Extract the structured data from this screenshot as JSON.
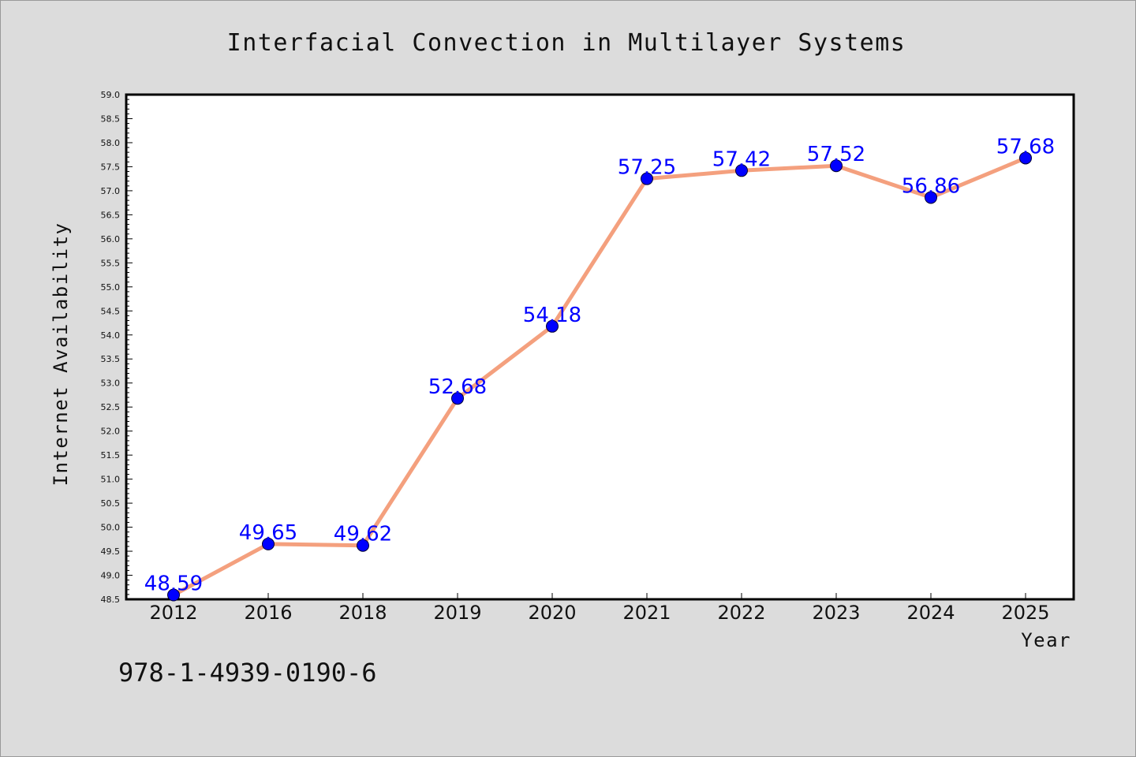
{
  "chart_data": {
    "type": "line",
    "title": "Interfacial Convection in Multilayer Systems",
    "xlabel": "Year",
    "ylabel": "Internet Availability",
    "categories": [
      "2012",
      "2016",
      "2018",
      "2019",
      "2020",
      "2021",
      "2022",
      "2023",
      "2024",
      "2025"
    ],
    "values": [
      48.59,
      49.65,
      49.62,
      52.68,
      54.18,
      57.25,
      57.42,
      57.52,
      56.86,
      57.68
    ],
    "data_labels": [
      "48.59",
      "49.65",
      "49.62",
      "52.68",
      "54.18",
      "57.25",
      "57.42",
      "57.52",
      "56.86",
      "57.68"
    ],
    "ylim": [
      48.5,
      59.0
    ],
    "ytick_labels": [
      "48.5",
      "49.0",
      "49.5",
      "50.0",
      "50.5",
      "51.0",
      "51.5",
      "52.0",
      "52.5",
      "53.0",
      "53.5",
      "54.0",
      "54.5",
      "55.0",
      "55.5",
      "56.0",
      "56.5",
      "57.0",
      "57.5",
      "58.0",
      "58.5",
      "59.0"
    ],
    "grid": false,
    "legend": "none",
    "colors": {
      "line": "#f4a07e",
      "marker": "#0000ff",
      "data_label": "#0000ff",
      "background": "#dcdcdc",
      "plot_background": "#ffffff"
    }
  },
  "footer": {
    "isbn": "978-1-4939-0190-6"
  }
}
